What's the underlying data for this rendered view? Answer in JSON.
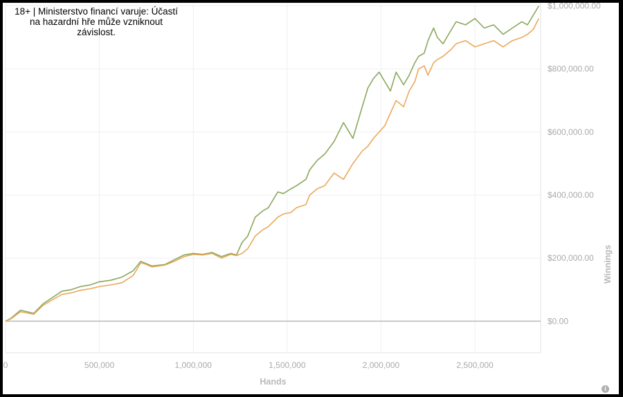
{
  "notice": {
    "lines": [
      "18+ | Ministerstvo financí varuje: Účastí",
      "na hazardní hře může vzniknout",
      "závislost."
    ]
  },
  "info_icon": "info-icon",
  "chart_data": {
    "type": "line",
    "xlabel": "Hands",
    "ylabel": "Winnings",
    "xlim": [
      0,
      2850000
    ],
    "ylim": [
      -100000,
      1010000
    ],
    "x_ticks": [
      0,
      500000,
      1000000,
      1500000,
      2000000,
      2500000
    ],
    "x_tick_labels": [
      "0",
      "500,000",
      "1,000,000",
      "1,500,000",
      "2,000,000",
      "2,500,000"
    ],
    "y_ticks": [
      0,
      200000,
      400000,
      600000,
      800000,
      1000000
    ],
    "y_tick_labels": [
      "$0.00",
      "$200,000.00",
      "$400,000.00",
      "$600,000.00",
      "$800,000.00",
      "$1,000,000.00"
    ],
    "y_axis_side": "right",
    "grid": true,
    "zero_line": true,
    "series": [
      {
        "color": "#8aa75c",
        "x": [
          0,
          30000,
          80000,
          150000,
          200000,
          250000,
          300000,
          350000,
          400000,
          450000,
          500000,
          560000,
          620000,
          680000,
          720000,
          740000,
          780000,
          850000,
          900000,
          950000,
          1000000,
          1050000,
          1100000,
          1150000,
          1200000,
          1230000,
          1260000,
          1290000,
          1330000,
          1370000,
          1400000,
          1450000,
          1480000,
          1520000,
          1550000,
          1600000,
          1620000,
          1660000,
          1700000,
          1750000,
          1800000,
          1850000,
          1900000,
          1930000,
          1960000,
          1990000,
          2020000,
          2050000,
          2080000,
          2120000,
          2150000,
          2180000,
          2200000,
          2230000,
          2250000,
          2280000,
          2300000,
          2330000,
          2370000,
          2400000,
          2450000,
          2500000,
          2550000,
          2600000,
          2650000,
          2700000,
          2750000,
          2780000,
          2810000,
          2840000
        ],
        "y": [
          0,
          10000,
          35000,
          25000,
          55000,
          75000,
          95000,
          100000,
          110000,
          115000,
          125000,
          130000,
          140000,
          160000,
          190000,
          185000,
          175000,
          180000,
          195000,
          210000,
          215000,
          212000,
          218000,
          205000,
          215000,
          210000,
          250000,
          270000,
          330000,
          350000,
          360000,
          410000,
          405000,
          420000,
          430000,
          450000,
          480000,
          510000,
          530000,
          570000,
          630000,
          580000,
          680000,
          740000,
          770000,
          790000,
          760000,
          730000,
          790000,
          750000,
          780000,
          820000,
          840000,
          850000,
          890000,
          930000,
          900000,
          880000,
          920000,
          950000,
          940000,
          960000,
          930000,
          940000,
          910000,
          930000,
          950000,
          940000,
          970000,
          1000000
        ]
      },
      {
        "color": "#eaa95a",
        "x": [
          0,
          30000,
          80000,
          150000,
          200000,
          250000,
          300000,
          350000,
          400000,
          450000,
          500000,
          560000,
          620000,
          680000,
          720000,
          740000,
          780000,
          850000,
          900000,
          950000,
          1000000,
          1050000,
          1100000,
          1150000,
          1200000,
          1230000,
          1260000,
          1290000,
          1330000,
          1370000,
          1400000,
          1450000,
          1480000,
          1520000,
          1550000,
          1600000,
          1620000,
          1660000,
          1700000,
          1750000,
          1800000,
          1850000,
          1900000,
          1930000,
          1960000,
          1990000,
          2020000,
          2050000,
          2080000,
          2120000,
          2150000,
          2180000,
          2200000,
          2230000,
          2250000,
          2280000,
          2300000,
          2330000,
          2370000,
          2400000,
          2450000,
          2500000,
          2550000,
          2600000,
          2650000,
          2700000,
          2750000,
          2780000,
          2810000,
          2840000
        ],
        "y": [
          0,
          8000,
          30000,
          22000,
          50000,
          68000,
          85000,
          90000,
          98000,
          103000,
          110000,
          115000,
          122000,
          145000,
          185000,
          182000,
          172000,
          178000,
          190000,
          205000,
          212000,
          210000,
          215000,
          200000,
          212000,
          208000,
          215000,
          230000,
          270000,
          290000,
          300000,
          330000,
          340000,
          345000,
          360000,
          370000,
          400000,
          420000,
          430000,
          470000,
          450000,
          500000,
          540000,
          555000,
          580000,
          600000,
          620000,
          660000,
          700000,
          680000,
          730000,
          760000,
          800000,
          810000,
          780000,
          820000,
          830000,
          840000,
          860000,
          880000,
          890000,
          870000,
          880000,
          890000,
          870000,
          890000,
          900000,
          910000,
          925000,
          960000
        ]
      }
    ]
  }
}
